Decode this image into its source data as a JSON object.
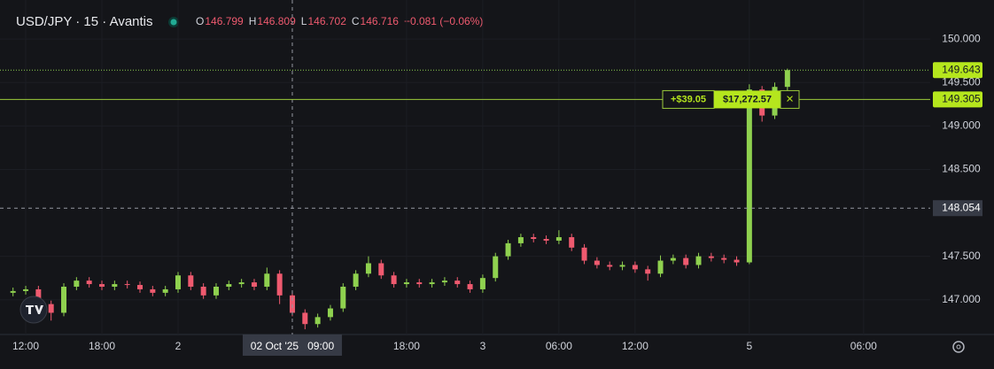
{
  "header": {
    "symbol": "USD/JPY · 15 · Avantis",
    "ohlc": [
      {
        "key": "O",
        "value": "146.799"
      },
      {
        "key": "H",
        "value": "146.809"
      },
      {
        "key": "L",
        "value": "146.702"
      },
      {
        "key": "C",
        "value": "146.716"
      }
    ],
    "change": "−0.081 (−0.06%)"
  },
  "chart_data": {
    "type": "candlestick",
    "up_color": "#8fd14f",
    "down_color": "#ef5a6f",
    "grid": true,
    "ylim": [
      146.6,
      150.45
    ],
    "yticks": [
      {
        "value": 147,
        "label": "147.000"
      },
      {
        "value": 147.5,
        "label": "147.500"
      },
      {
        "value": 148.5,
        "label": "148.500"
      },
      {
        "value": 149,
        "label": "149.000"
      },
      {
        "value": 149.5,
        "label": "149.500"
      },
      {
        "value": 150,
        "label": "150.000"
      }
    ],
    "categories": [
      null,
      "12:00",
      null,
      null,
      null,
      null,
      null,
      "18:00",
      null,
      null,
      null,
      null,
      null,
      "2",
      null,
      null,
      null,
      null,
      null,
      null,
      null,
      null,
      "02 Oct '25   09:00",
      null,
      null,
      null,
      null,
      null,
      null,
      null,
      null,
      "18:00",
      null,
      null,
      null,
      null,
      null,
      "3",
      null,
      null,
      null,
      null,
      null,
      "06:00",
      null,
      null,
      null,
      null,
      null,
      "12:00",
      null,
      null,
      null,
      null,
      null,
      null,
      null,
      null,
      "5",
      null,
      null,
      null,
      null,
      null,
      null,
      null,
      null,
      "06:00"
    ],
    "open": [
      147.08,
      147.1,
      147.12,
      146.95,
      146.85,
      147.15,
      147.22,
      147.18,
      147.15,
      147.18,
      147.17,
      147.12,
      147.08,
      147.12,
      147.28,
      147.15,
      147.05,
      147.15,
      147.18,
      147.2,
      147.15,
      147.3,
      147.05,
      146.85,
      146.72,
      146.8,
      146.9,
      147.15,
      147.3,
      147.42,
      147.28,
      147.18,
      147.2,
      147.18,
      147.2,
      147.22,
      147.18,
      147.12,
      147.25,
      147.5,
      147.65,
      147.72,
      147.7,
      147.68,
      147.72,
      147.6,
      147.45,
      147.4,
      147.38,
      147.4,
      147.35,
      147.3,
      147.45,
      147.48,
      147.4,
      147.5,
      147.48,
      147.46,
      147.43,
      149.42,
      149.12,
      149.45,
      null,
      null,
      null,
      null,
      null,
      null
    ],
    "high": [
      147.14,
      147.16,
      147.16,
      146.99,
      147.19,
      147.26,
      147.26,
      147.22,
      147.22,
      147.22,
      147.21,
      147.16,
      147.16,
      147.32,
      147.32,
      147.19,
      147.19,
      147.22,
      147.24,
      147.24,
      147.37,
      147.34,
      147.09,
      146.89,
      146.84,
      146.94,
      147.19,
      147.34,
      147.5,
      147.46,
      147.32,
      147.24,
      147.24,
      147.24,
      147.26,
      147.26,
      147.22,
      147.29,
      147.54,
      147.69,
      147.76,
      147.76,
      147.74,
      147.8,
      147.76,
      147.64,
      147.49,
      147.44,
      147.44,
      147.44,
      147.39,
      147.51,
      147.52,
      147.52,
      147.54,
      147.54,
      147.52,
      147.5,
      149.48,
      149.46,
      149.5,
      149.66,
      null,
      null,
      null,
      null,
      null,
      null
    ],
    "low": [
      147.04,
      147.06,
      146.91,
      146.76,
      146.81,
      147.11,
      147.14,
      147.11,
      147.11,
      147.13,
      147.08,
      147.04,
      147.04,
      147.08,
      147.11,
      147.01,
      147.01,
      147.11,
      147.14,
      147.11,
      147.11,
      146.95,
      146.81,
      146.66,
      146.68,
      146.76,
      146.86,
      147.11,
      147.26,
      147.24,
      147.14,
      147.14,
      147.14,
      147.14,
      147.16,
      147.14,
      147.08,
      147.08,
      147.21,
      147.46,
      147.61,
      147.66,
      147.64,
      147.64,
      147.56,
      147.41,
      147.36,
      147.34,
      147.34,
      147.31,
      147.22,
      147.26,
      147.41,
      147.36,
      147.36,
      147.44,
      147.42,
      147.39,
      147.41,
      149.05,
      149.08,
      149.41,
      null,
      null,
      null,
      null,
      null,
      null
    ],
    "close": [
      147.1,
      147.12,
      146.95,
      146.85,
      147.15,
      147.22,
      147.18,
      147.15,
      147.18,
      147.17,
      147.12,
      147.08,
      147.12,
      147.28,
      147.15,
      147.05,
      147.15,
      147.18,
      147.2,
      147.15,
      147.3,
      147.05,
      146.85,
      146.72,
      146.8,
      146.9,
      147.15,
      147.3,
      147.42,
      147.28,
      147.18,
      147.2,
      147.18,
      147.2,
      147.22,
      147.18,
      147.12,
      147.25,
      147.5,
      147.65,
      147.72,
      147.7,
      147.68,
      147.72,
      147.6,
      147.45,
      147.4,
      147.38,
      147.4,
      147.35,
      147.3,
      147.45,
      147.48,
      147.4,
      147.5,
      147.48,
      147.46,
      147.43,
      149.42,
      149.12,
      149.45,
      149.643,
      null,
      null,
      null,
      null,
      null,
      null
    ],
    "last_price": {
      "value": 149.643,
      "label": "149.643"
    },
    "position": {
      "price": {
        "value": 149.305,
        "label": "149.305"
      },
      "pnl": "+$39.05",
      "amount": "$17,272.57",
      "close": "×"
    },
    "crosshair": {
      "x": 22,
      "y": {
        "value": 148.054,
        "label": "148.054"
      }
    }
  }
}
